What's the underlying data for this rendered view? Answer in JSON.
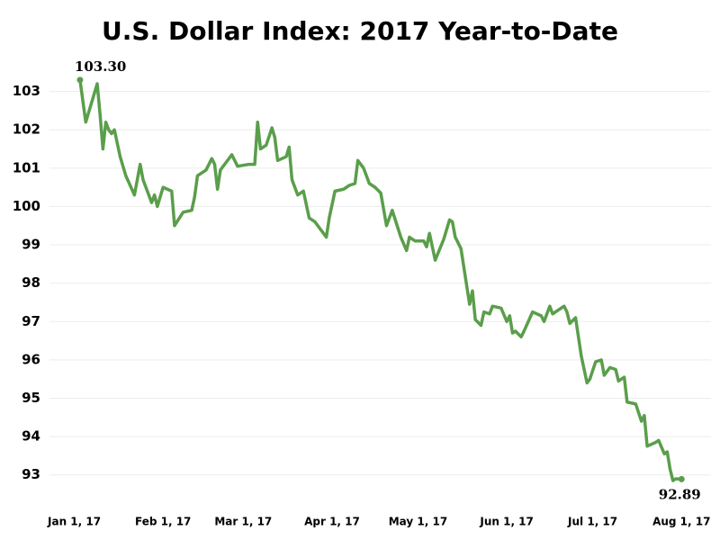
{
  "chart_data": {
    "type": "line",
    "title": "U.S. Dollar Index: 2017 Year-to-Date",
    "x": [
      "2017-01-03",
      "2017-01-05",
      "2017-01-09",
      "2017-01-10",
      "2017-01-11",
      "2017-01-12",
      "2017-01-13",
      "2017-01-14",
      "2017-01-15",
      "2017-01-17",
      "2017-01-19",
      "2017-01-22",
      "2017-01-24",
      "2017-01-25",
      "2017-01-28",
      "2017-01-29",
      "2017-01-30",
      "2017-02-01",
      "2017-02-04",
      "2017-02-05",
      "2017-02-08",
      "2017-02-11",
      "2017-02-12",
      "2017-02-13",
      "2017-02-16",
      "2017-02-18",
      "2017-02-19",
      "2017-02-20",
      "2017-02-21",
      "2017-02-25",
      "2017-02-27",
      "2017-03-03",
      "2017-03-05",
      "2017-03-06",
      "2017-03-07",
      "2017-03-09",
      "2017-03-11",
      "2017-03-12",
      "2017-03-13",
      "2017-03-16",
      "2017-03-17",
      "2017-03-18",
      "2017-03-20",
      "2017-03-22",
      "2017-03-24",
      "2017-03-26",
      "2017-03-30",
      "2017-03-31",
      "2017-04-02",
      "2017-04-05",
      "2017-04-07",
      "2017-04-09",
      "2017-04-10",
      "2017-04-12",
      "2017-04-14",
      "2017-04-16",
      "2017-04-18",
      "2017-04-20",
      "2017-04-22",
      "2017-04-25",
      "2017-04-27",
      "2017-04-28",
      "2017-04-30",
      "2017-05-03",
      "2017-05-04",
      "2017-05-05",
      "2017-05-07",
      "2017-05-10",
      "2017-05-12",
      "2017-05-13",
      "2017-05-14",
      "2017-05-16",
      "2017-05-19",
      "2017-05-20",
      "2017-05-21",
      "2017-05-23",
      "2017-05-24",
      "2017-05-26",
      "2017-05-27",
      "2017-05-30",
      "2017-06-01",
      "2017-06-02",
      "2017-06-03",
      "2017-06-04",
      "2017-06-06",
      "2017-06-07",
      "2017-06-10",
      "2017-06-13",
      "2017-06-14",
      "2017-06-16",
      "2017-06-17",
      "2017-06-19",
      "2017-06-21",
      "2017-06-22",
      "2017-06-23",
      "2017-06-25",
      "2017-06-27",
      "2017-06-29",
      "2017-06-30",
      "2017-07-02",
      "2017-07-04",
      "2017-07-05",
      "2017-07-07",
      "2017-07-09",
      "2017-07-10",
      "2017-07-12",
      "2017-07-13",
      "2017-07-16",
      "2017-07-18",
      "2017-07-19",
      "2017-07-20",
      "2017-07-23",
      "2017-07-24",
      "2017-07-26",
      "2017-07-27",
      "2017-07-28",
      "2017-07-29",
      "2017-07-30",
      "2017-08-01"
    ],
    "values": [
      103.3,
      102.2,
      103.2,
      102.4,
      101.5,
      102.2,
      102.0,
      101.9,
      102.0,
      101.3,
      100.8,
      100.3,
      101.1,
      100.7,
      100.1,
      100.3,
      100.0,
      100.5,
      100.4,
      99.5,
      99.85,
      99.9,
      100.25,
      100.8,
      100.95,
      101.25,
      101.1,
      100.45,
      100.95,
      101.35,
      101.05,
      101.1,
      101.1,
      102.2,
      101.5,
      101.6,
      102.05,
      101.8,
      101.2,
      101.3,
      101.55,
      100.7,
      100.3,
      100.4,
      99.7,
      99.6,
      99.2,
      99.7,
      100.4,
      100.45,
      100.55,
      100.6,
      101.2,
      101.0,
      100.6,
      100.5,
      100.35,
      99.5,
      99.9,
      99.2,
      98.85,
      99.2,
      99.1,
      99.1,
      98.95,
      99.3,
      98.6,
      99.15,
      99.65,
      99.6,
      99.2,
      98.9,
      97.45,
      97.8,
      97.05,
      96.9,
      97.25,
      97.2,
      97.4,
      97.35,
      97.0,
      97.15,
      96.7,
      96.75,
      96.6,
      96.75,
      97.25,
      97.15,
      97.0,
      97.4,
      97.2,
      97.3,
      97.4,
      97.25,
      96.95,
      97.1,
      96.1,
      95.4,
      95.5,
      95.95,
      96.0,
      95.6,
      95.8,
      95.75,
      95.45,
      95.55,
      94.9,
      94.85,
      94.4,
      94.55,
      93.75,
      93.85,
      93.9,
      93.55,
      93.6,
      93.15,
      92.85,
      92.9,
      92.89
    ],
    "value_labels": [
      "103.30",
      null,
      null,
      null,
      null,
      null,
      null,
      null,
      null,
      null,
      null,
      null,
      null,
      null,
      null,
      null,
      null,
      null,
      null,
      null,
      null,
      null,
      null,
      null,
      null,
      null,
      null,
      null,
      null,
      null,
      null,
      null,
      null,
      null,
      null,
      null,
      null,
      null,
      null,
      null,
      null,
      null,
      null,
      null,
      null,
      null,
      null,
      null,
      null,
      null,
      null,
      null,
      null,
      null,
      null,
      null,
      null,
      null,
      null,
      null,
      null,
      null,
      null,
      null,
      null,
      null,
      null,
      null,
      null,
      null,
      null,
      null,
      null,
      null,
      null,
      null,
      null,
      null,
      null,
      null,
      null,
      null,
      null,
      null,
      null,
      null,
      null,
      null,
      null,
      null,
      null,
      null,
      null,
      null,
      null,
      null,
      null,
      null,
      null,
      null,
      null,
      null,
      null,
      null,
      null,
      null,
      null,
      null,
      null,
      null,
      null,
      null,
      null,
      null,
      null,
      null,
      null,
      null,
      "92.89"
    ],
    "color": "#5a9e4b",
    "xlim": [
      "2016-12-29",
      "2017-08-05"
    ],
    "xticks": [
      {
        "value": "2017-01-01",
        "label": "Jan 1, 17"
      },
      {
        "value": "2017-02-01",
        "label": "Feb 1, 17"
      },
      {
        "value": "2017-03-01",
        "label": "Mar 1, 17"
      },
      {
        "value": "2017-04-01",
        "label": "Apr 1, 17"
      },
      {
        "value": "2017-05-01",
        "label": "May 1, 17"
      },
      {
        "value": "2017-06-01",
        "label": "Jun 1, 17"
      },
      {
        "value": "2017-07-01",
        "label": "Jul 1, 17"
      },
      {
        "value": "2017-08-01",
        "label": "Aug 1, 17"
      }
    ],
    "ylim": [
      92.5,
      104
    ],
    "yticks": [
      93,
      94,
      95,
      96,
      97,
      98,
      99,
      100,
      101,
      102,
      103
    ],
    "grid": true
  }
}
